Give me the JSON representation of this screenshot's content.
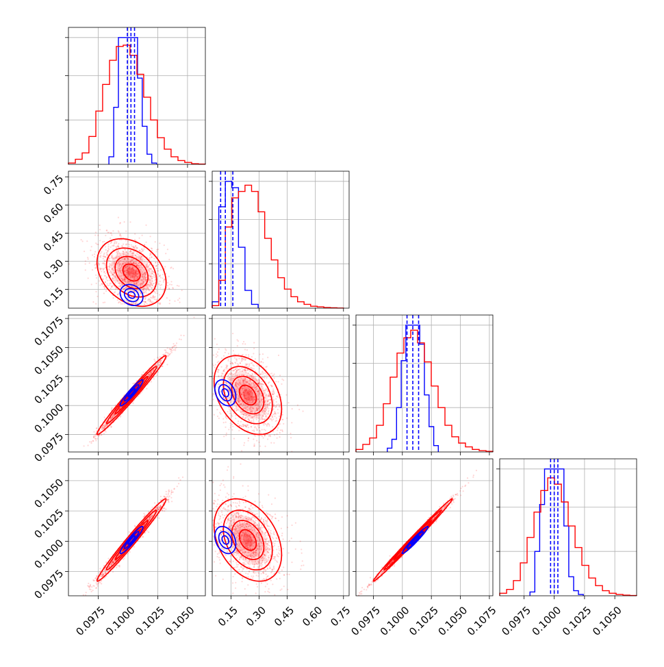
{
  "chart_data": {
    "type": "corner",
    "title": "",
    "grid": true,
    "colors": {
      "red": "#ff0000",
      "blue": "#0000ff"
    },
    "series": [
      {
        "color": "red",
        "median": [
          0.1003,
          0.24,
          0.1009,
          0.1001
        ],
        "sigma": [
          0.00145,
          0.09,
          0.0017,
          0.0017
        ]
      },
      {
        "color": "blue",
        "median": [
          0.1003,
          0.12,
          0.1011,
          0.1001
        ],
        "sigma": [
          0.0006,
          0.035,
          0.0007,
          0.0007
        ]
      }
    ],
    "quantile_lines": {
      "color": "blue",
      "dashed": true,
      "values": [
        [
          0.09995,
          0.10025,
          0.10055
        ],
        [
          0.095,
          0.12,
          0.16
        ],
        [
          0.1004,
          0.1009,
          0.1014
        ],
        [
          0.0997,
          0.1,
          0.1003
        ]
      ]
    },
    "params": [
      {
        "range": [
          0.095,
          0.1065
        ],
        "ticks": [
          0.0975,
          0.1,
          0.1025,
          0.105
        ],
        "tick_labels": [
          "0.0975",
          "0.1000",
          "0.1025",
          "0.1050"
        ]
      },
      {
        "range": [
          0.05,
          0.78
        ],
        "ticks": [
          0.15,
          0.3,
          0.45,
          0.6,
          0.75
        ],
        "tick_labels": [
          "0.15",
          "0.30",
          "0.45",
          "0.60",
          "0.75"
        ]
      },
      {
        "range": [
          0.096,
          0.1078
        ],
        "ticks": [
          0.0975,
          0.1,
          0.1025,
          0.105,
          0.1075
        ],
        "tick_labels": [
          "0.0975",
          "0.1000",
          "0.1025",
          "0.1050",
          "0.1075"
        ]
      },
      {
        "range": [
          0.0955,
          0.1068
        ],
        "ticks": [
          0.0975,
          0.1,
          0.1025,
          0.105
        ],
        "tick_labels": [
          "0.0975",
          "0.1000",
          "0.1025",
          "0.1050"
        ]
      }
    ],
    "histograms": [
      {
        "param": 0,
        "red": {
          "bins": [
            0.095,
            0.09558,
            0.09615,
            0.09672,
            0.0973,
            0.09787,
            0.09845,
            0.09902,
            0.0996,
            0.10017,
            0.10075,
            0.10132,
            0.1019,
            0.10247,
            0.10305,
            0.10362,
            0.1042,
            0.10477,
            0.10535,
            0.10592,
            0.1065
          ],
          "counts": [
            0.01,
            0.04,
            0.09,
            0.22,
            0.42,
            0.63,
            0.82,
            0.93,
            0.94,
            0.86,
            0.71,
            0.53,
            0.35,
            0.21,
            0.12,
            0.06,
            0.03,
            0.015,
            0.005,
            0.002
          ]
        },
        "blue": {
          "bins": [
            0.0984,
            0.0988,
            0.0992,
            0.0996,
            0.1,
            0.1004,
            0.1008,
            0.1012,
            0.1016,
            0.102,
            0.1024
          ],
          "counts": [
            0.06,
            0.45,
            1.0,
            1.0,
            1.0,
            1.0,
            0.68,
            0.3,
            0.08,
            0.01
          ]
        }
      },
      {
        "param": 1,
        "red": {
          "bins": [
            0.05,
            0.085,
            0.12,
            0.155,
            0.19,
            0.225,
            0.26,
            0.295,
            0.33,
            0.365,
            0.4,
            0.435,
            0.47,
            0.505,
            0.54,
            0.575,
            0.61,
            0.645,
            0.68,
            0.715,
            0.75
          ],
          "counts": [
            0.02,
            0.22,
            0.64,
            0.87,
            0.92,
            0.97,
            0.92,
            0.76,
            0.55,
            0.38,
            0.24,
            0.15,
            0.09,
            0.05,
            0.03,
            0.015,
            0.01,
            0.005,
            0.003,
            0.001
          ]
        },
        "blue": {
          "bins": [
            0.05,
            0.085,
            0.12,
            0.155,
            0.19,
            0.225,
            0.26,
            0.295
          ],
          "counts": [
            0.05,
            0.8,
            1.0,
            0.95,
            0.48,
            0.14,
            0.03
          ]
        }
      },
      {
        "param": 2,
        "red": {
          "bins": [
            0.096,
            0.09659,
            0.09718,
            0.09777,
            0.09836,
            0.09895,
            0.09954,
            0.10013,
            0.10072,
            0.10131,
            0.1019,
            0.10249,
            0.10308,
            0.10367,
            0.10426,
            0.10485,
            0.10544,
            0.10603,
            0.10662,
            0.10721,
            0.1078
          ],
          "counts": [
            0.02,
            0.06,
            0.11,
            0.21,
            0.38,
            0.59,
            0.78,
            0.9,
            0.96,
            0.86,
            0.71,
            0.52,
            0.35,
            0.21,
            0.12,
            0.07,
            0.04,
            0.02,
            0.01,
            0.005
          ]
        },
        "blue": {
          "bins": [
            0.0987,
            0.0991,
            0.0995,
            0.0999,
            0.1003,
            0.1007,
            0.1011,
            0.1015,
            0.1019,
            0.1023,
            0.1027,
            0.1031
          ],
          "counts": [
            0.03,
            0.1,
            0.35,
            0.72,
            1.0,
            1.0,
            1.0,
            0.85,
            0.45,
            0.2,
            0.05
          ]
        }
      },
      {
        "param": 3,
        "red": {
          "bins": [
            0.0955,
            0.09607,
            0.09663,
            0.0972,
            0.09776,
            0.09833,
            0.09889,
            0.09946,
            0.10002,
            0.10059,
            0.10115,
            0.10172,
            0.10228,
            0.10285,
            0.10341,
            0.10398,
            0.10454,
            0.10511,
            0.10567,
            0.10624,
            0.1068
          ],
          "counts": [
            0.02,
            0.05,
            0.12,
            0.26,
            0.46,
            0.66,
            0.83,
            0.93,
            0.88,
            0.74,
            0.55,
            0.38,
            0.24,
            0.14,
            0.08,
            0.04,
            0.02,
            0.01,
            0.005,
            0.002
          ]
        },
        "blue": {
          "bins": [
            0.098,
            0.0984,
            0.0988,
            0.0992,
            0.0996,
            0.1,
            0.1004,
            0.1008,
            0.1012,
            0.1016,
            0.102,
            0.1024
          ],
          "counts": [
            0.03,
            0.35,
            0.72,
            1.0,
            1.0,
            1.0,
            1.0,
            0.55,
            0.15,
            0.04,
            0.01
          ]
        }
      }
    ],
    "correlations": [
      {
        "row": 1,
        "col": 0,
        "red": -0.3,
        "blue": -0.2
      },
      {
        "row": 2,
        "col": 0,
        "red": 0.985,
        "blue": 0.94
      },
      {
        "row": 2,
        "col": 1,
        "red": -0.35,
        "blue": -0.3
      },
      {
        "row": 3,
        "col": 0,
        "red": 0.985,
        "blue": 0.94
      },
      {
        "row": 3,
        "col": 1,
        "red": -0.35,
        "blue": -0.3
      },
      {
        "row": 3,
        "col": 2,
        "red": 0.995,
        "blue": 0.97
      }
    ]
  }
}
